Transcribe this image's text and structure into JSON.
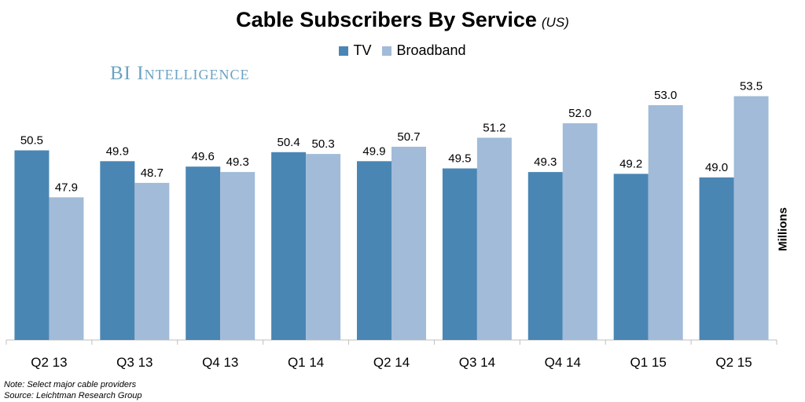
{
  "chart_data": {
    "type": "bar",
    "title": "Cable Subscribers By Service",
    "subtitle": "(US)",
    "ylabel": "Millions",
    "xlabel": "",
    "categories": [
      "Q2 13",
      "Q3 13",
      "Q4 13",
      "Q1 14",
      "Q2 14",
      "Q3 14",
      "Q4 14",
      "Q1 15",
      "Q2 15"
    ],
    "series": [
      {
        "name": "TV",
        "color": "#4a86b4",
        "values": [
          50.5,
          49.9,
          49.6,
          50.4,
          49.9,
          49.5,
          49.3,
          49.2,
          49.0
        ],
        "labels": [
          "50.5",
          "49.9",
          "49.6",
          "50.4",
          "49.9",
          "49.5",
          "49.3",
          "49.2",
          "49.0"
        ]
      },
      {
        "name": "Broadband",
        "color": "#a1bbd9",
        "values": [
          47.9,
          48.7,
          49.3,
          50.3,
          50.7,
          51.2,
          52.0,
          53.0,
          53.5
        ],
        "labels": [
          "47.9",
          "48.7",
          "49.3",
          "50.3",
          "50.7",
          "51.2",
          "52.0",
          "53.0",
          "53.5"
        ]
      }
    ],
    "ylim": [
      40,
      55
    ],
    "grid": false,
    "legend_position": "top-center"
  },
  "brand": "BI Intelligence",
  "notes": {
    "note": "Note: Select major cable providers",
    "source": "Source: Leichtman Research Group"
  }
}
